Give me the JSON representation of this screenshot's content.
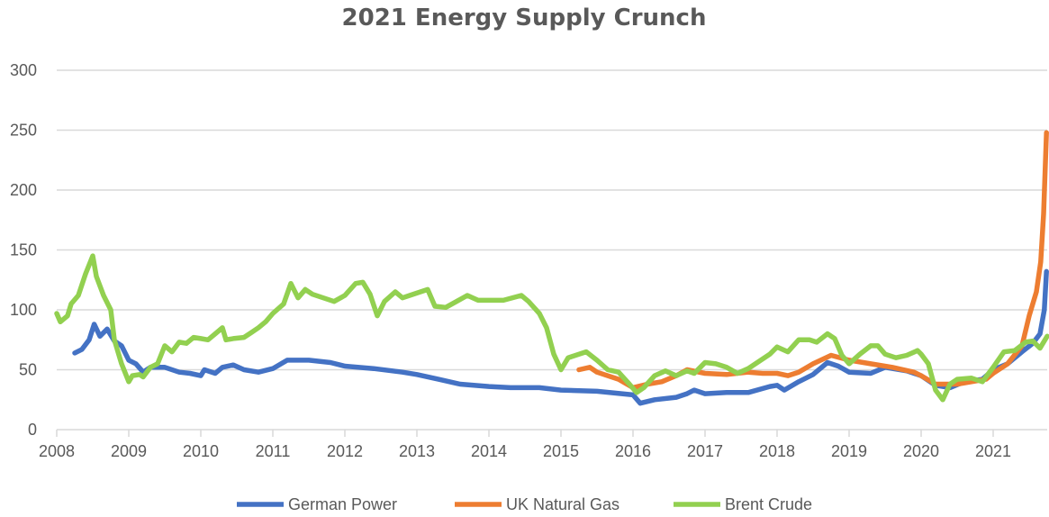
{
  "chart_data": {
    "type": "line",
    "title": "2021 Energy Supply Crunch",
    "xlabel": "",
    "ylabel": "",
    "xlim": [
      2008,
      2021.75
    ],
    "ylim": [
      0,
      300
    ],
    "x_ticks": [
      "2008",
      "2009",
      "2010",
      "2011",
      "2012",
      "2013",
      "2014",
      "2015",
      "2016",
      "2017",
      "2018",
      "2019",
      "2020",
      "2021"
    ],
    "y_ticks": [
      "0",
      "50",
      "100",
      "150",
      "200",
      "250",
      "300"
    ],
    "grid": "horizontal",
    "legend_position": "bottom",
    "series": [
      {
        "name": "German Power",
        "color": "#4472C4",
        "points": [
          [
            2008.25,
            64
          ],
          [
            2008.35,
            67
          ],
          [
            2008.45,
            75
          ],
          [
            2008.52,
            88
          ],
          [
            2008.6,
            78
          ],
          [
            2008.7,
            84
          ],
          [
            2008.8,
            74
          ],
          [
            2008.9,
            70
          ],
          [
            2009.0,
            58
          ],
          [
            2009.1,
            55
          ],
          [
            2009.2,
            48
          ],
          [
            2009.3,
            52
          ],
          [
            2009.5,
            52
          ],
          [
            2009.7,
            48
          ],
          [
            2009.85,
            47
          ],
          [
            2010.0,
            45
          ],
          [
            2010.05,
            50
          ],
          [
            2010.2,
            47
          ],
          [
            2010.3,
            52
          ],
          [
            2010.45,
            54
          ],
          [
            2010.6,
            50
          ],
          [
            2010.8,
            48
          ],
          [
            2011.0,
            51
          ],
          [
            2011.2,
            58
          ],
          [
            2011.5,
            58
          ],
          [
            2011.8,
            56
          ],
          [
            2012.0,
            53
          ],
          [
            2012.4,
            51
          ],
          [
            2012.8,
            48
          ],
          [
            2013.0,
            46
          ],
          [
            2013.3,
            42
          ],
          [
            2013.6,
            38
          ],
          [
            2014.0,
            36
          ],
          [
            2014.3,
            35
          ],
          [
            2014.7,
            35
          ],
          [
            2015.0,
            33
          ],
          [
            2015.5,
            32
          ],
          [
            2016.0,
            29
          ],
          [
            2016.1,
            22
          ],
          [
            2016.3,
            25
          ],
          [
            2016.6,
            27
          ],
          [
            2016.75,
            30
          ],
          [
            2016.85,
            33
          ],
          [
            2017.0,
            30
          ],
          [
            2017.3,
            31
          ],
          [
            2017.6,
            31
          ],
          [
            2017.9,
            36
          ],
          [
            2018.0,
            37
          ],
          [
            2018.1,
            33
          ],
          [
            2018.3,
            40
          ],
          [
            2018.5,
            46
          ],
          [
            2018.7,
            56
          ],
          [
            2018.85,
            53
          ],
          [
            2019.0,
            48
          ],
          [
            2019.3,
            47
          ],
          [
            2019.5,
            52
          ],
          [
            2019.8,
            49
          ],
          [
            2020.0,
            45
          ],
          [
            2020.2,
            37
          ],
          [
            2020.4,
            35
          ],
          [
            2020.6,
            40
          ],
          [
            2020.85,
            42
          ],
          [
            2021.0,
            50
          ],
          [
            2021.2,
            55
          ],
          [
            2021.4,
            65
          ],
          [
            2021.55,
            72
          ],
          [
            2021.65,
            80
          ],
          [
            2021.71,
            100
          ],
          [
            2021.74,
            132
          ]
        ]
      },
      {
        "name": "UK Natural Gas",
        "color": "#ED7D31",
        "points": [
          [
            2015.25,
            50
          ],
          [
            2015.4,
            52
          ],
          [
            2015.5,
            48
          ],
          [
            2015.8,
            42
          ],
          [
            2016.0,
            35
          ],
          [
            2016.2,
            38
          ],
          [
            2016.4,
            40
          ],
          [
            2016.6,
            45
          ],
          [
            2016.75,
            50
          ],
          [
            2017.0,
            47
          ],
          [
            2017.3,
            46
          ],
          [
            2017.6,
            48
          ],
          [
            2017.8,
            47
          ],
          [
            2018.0,
            47
          ],
          [
            2018.15,
            45
          ],
          [
            2018.3,
            48
          ],
          [
            2018.5,
            55
          ],
          [
            2018.75,
            62
          ],
          [
            2019.0,
            58
          ],
          [
            2019.3,
            55
          ],
          [
            2019.6,
            52
          ],
          [
            2019.9,
            48
          ],
          [
            2020.0,
            45
          ],
          [
            2020.2,
            38
          ],
          [
            2020.5,
            38
          ],
          [
            2020.7,
            40
          ],
          [
            2020.9,
            42
          ],
          [
            2021.0,
            47
          ],
          [
            2021.2,
            55
          ],
          [
            2021.4,
            70
          ],
          [
            2021.5,
            95
          ],
          [
            2021.6,
            115
          ],
          [
            2021.66,
            140
          ],
          [
            2021.7,
            180
          ],
          [
            2021.74,
            248
          ]
        ]
      },
      {
        "name": "Brent Crude",
        "color": "#92D050",
        "points": [
          [
            2008.0,
            97
          ],
          [
            2008.05,
            90
          ],
          [
            2008.15,
            95
          ],
          [
            2008.2,
            105
          ],
          [
            2008.3,
            112
          ],
          [
            2008.4,
            130
          ],
          [
            2008.5,
            145
          ],
          [
            2008.55,
            128
          ],
          [
            2008.65,
            112
          ],
          [
            2008.75,
            100
          ],
          [
            2008.8,
            75
          ],
          [
            2008.9,
            55
          ],
          [
            2009.0,
            40
          ],
          [
            2009.05,
            45
          ],
          [
            2009.15,
            46
          ],
          [
            2009.2,
            44
          ],
          [
            2009.3,
            52
          ],
          [
            2009.4,
            55
          ],
          [
            2009.5,
            70
          ],
          [
            2009.6,
            65
          ],
          [
            2009.7,
            73
          ],
          [
            2009.8,
            72
          ],
          [
            2009.9,
            77
          ],
          [
            2010.0,
            76
          ],
          [
            2010.1,
            75
          ],
          [
            2010.2,
            80
          ],
          [
            2010.3,
            85
          ],
          [
            2010.35,
            75
          ],
          [
            2010.45,
            76
          ],
          [
            2010.6,
            77
          ],
          [
            2010.7,
            81
          ],
          [
            2010.8,
            85
          ],
          [
            2010.9,
            90
          ],
          [
            2011.0,
            97
          ],
          [
            2011.15,
            105
          ],
          [
            2011.25,
            122
          ],
          [
            2011.35,
            110
          ],
          [
            2011.45,
            117
          ],
          [
            2011.55,
            113
          ],
          [
            2011.7,
            110
          ],
          [
            2011.85,
            107
          ],
          [
            2012.0,
            112
          ],
          [
            2012.15,
            122
          ],
          [
            2012.25,
            123
          ],
          [
            2012.35,
            113
          ],
          [
            2012.45,
            95
          ],
          [
            2012.55,
            107
          ],
          [
            2012.7,
            115
          ],
          [
            2012.8,
            110
          ],
          [
            2012.9,
            112
          ],
          [
            2013.05,
            115
          ],
          [
            2013.15,
            117
          ],
          [
            2013.25,
            103
          ],
          [
            2013.4,
            102
          ],
          [
            2013.55,
            107
          ],
          [
            2013.7,
            112
          ],
          [
            2013.85,
            108
          ],
          [
            2014.0,
            108
          ],
          [
            2014.2,
            108
          ],
          [
            2014.45,
            112
          ],
          [
            2014.55,
            107
          ],
          [
            2014.7,
            97
          ],
          [
            2014.8,
            85
          ],
          [
            2014.9,
            63
          ],
          [
            2015.0,
            50
          ],
          [
            2015.1,
            60
          ],
          [
            2015.35,
            65
          ],
          [
            2015.5,
            58
          ],
          [
            2015.65,
            50
          ],
          [
            2015.8,
            48
          ],
          [
            2015.95,
            38
          ],
          [
            2016.05,
            31
          ],
          [
            2016.15,
            35
          ],
          [
            2016.3,
            45
          ],
          [
            2016.45,
            49
          ],
          [
            2016.6,
            45
          ],
          [
            2016.75,
            49
          ],
          [
            2016.85,
            47
          ],
          [
            2017.0,
            56
          ],
          [
            2017.15,
            55
          ],
          [
            2017.3,
            52
          ],
          [
            2017.45,
            47
          ],
          [
            2017.6,
            51
          ],
          [
            2017.75,
            57
          ],
          [
            2017.9,
            63
          ],
          [
            2018.0,
            69
          ],
          [
            2018.15,
            65
          ],
          [
            2018.3,
            75
          ],
          [
            2018.45,
            75
          ],
          [
            2018.55,
            73
          ],
          [
            2018.7,
            80
          ],
          [
            2018.8,
            76
          ],
          [
            2018.9,
            62
          ],
          [
            2019.0,
            55
          ],
          [
            2019.15,
            63
          ],
          [
            2019.3,
            70
          ],
          [
            2019.4,
            70
          ],
          [
            2019.5,
            63
          ],
          [
            2019.65,
            60
          ],
          [
            2019.8,
            62
          ],
          [
            2019.95,
            66
          ],
          [
            2020.0,
            63
          ],
          [
            2020.1,
            55
          ],
          [
            2020.2,
            33
          ],
          [
            2020.3,
            25
          ],
          [
            2020.4,
            38
          ],
          [
            2020.5,
            42
          ],
          [
            2020.7,
            43
          ],
          [
            2020.85,
            40
          ],
          [
            2021.0,
            52
          ],
          [
            2021.15,
            65
          ],
          [
            2021.3,
            66
          ],
          [
            2021.45,
            73
          ],
          [
            2021.55,
            74
          ],
          [
            2021.65,
            68
          ],
          [
            2021.75,
            78
          ]
        ]
      }
    ]
  }
}
